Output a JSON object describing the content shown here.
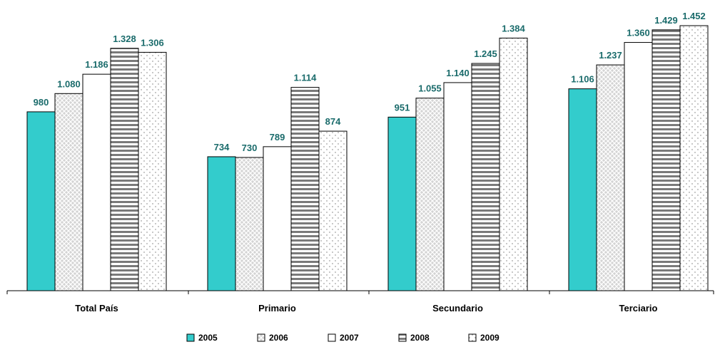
{
  "chart_data": {
    "type": "bar",
    "title": "",
    "xlabel": "",
    "ylabel": "",
    "categories": [
      "Total País",
      "Primario",
      "Secundario",
      "Terciario"
    ],
    "series": [
      {
        "name": "2005",
        "values": [
          980,
          734,
          951,
          1106
        ],
        "labels": [
          "980",
          "734",
          "951",
          "1.106"
        ]
      },
      {
        "name": "2006",
        "values": [
          1080,
          730,
          1055,
          1237
        ],
        "labels": [
          "1.080",
          "730",
          "1.055",
          "1.237"
        ]
      },
      {
        "name": "2007",
        "values": [
          1186,
          789,
          1140,
          1360
        ],
        "labels": [
          "1.186",
          "789",
          "1.140",
          "1.360"
        ]
      },
      {
        "name": "2008",
        "values": [
          1328,
          1114,
          1245,
          1429
        ],
        "labels": [
          "1.328",
          "1.114",
          "1.245",
          "1.429"
        ]
      },
      {
        "name": "2009",
        "values": [
          1306,
          874,
          1384,
          1452
        ],
        "labels": [
          "1.306",
          "874",
          "1.384",
          "1.452"
        ]
      }
    ],
    "ylim": [
      0,
      1500
    ],
    "grid": false,
    "legend_position": "bottom",
    "colors": {
      "2005": "#33cccc",
      "2006": "#c8c8c8",
      "2007": "#ffffff",
      "2008": "#8c8c8c",
      "2009": "#ffffff",
      "label_color": "#1a6b6b"
    }
  }
}
